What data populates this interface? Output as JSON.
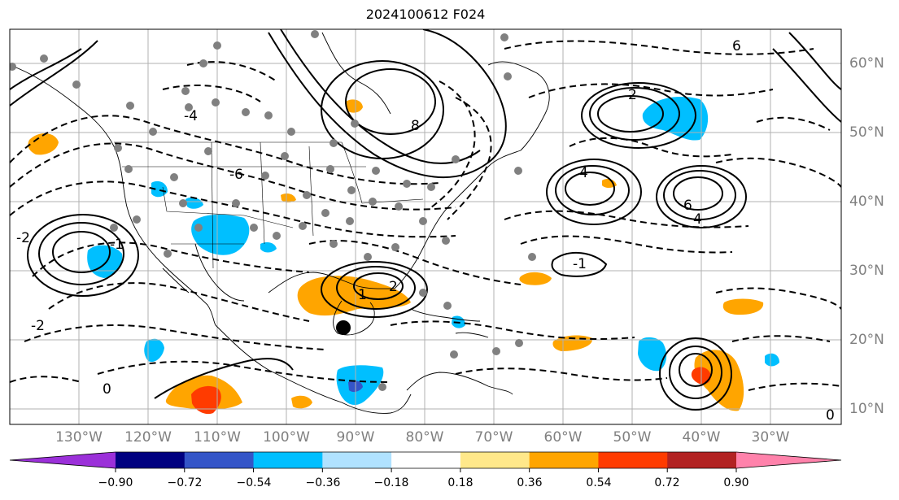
{
  "title": "2024100612 F024",
  "lon_labels": [
    "130°W",
    "120°W",
    "110°W",
    "100°W",
    "90°W",
    "80°W",
    "70°W",
    "60°W",
    "50°W",
    "40°W",
    "30°W"
  ],
  "lat_labels": [
    "60°N",
    "50°N",
    "40°N",
    "30°N",
    "20°N",
    "10°N"
  ],
  "contour_labels": [
    "2",
    "4",
    "6",
    "8",
    "-1",
    "-2",
    "-4",
    "-6",
    "0",
    "1",
    "2",
    "4",
    "6",
    "-1",
    "-2",
    "0"
  ],
  "colorbar": {
    "ticks": [
      "−0.90",
      "−0.72",
      "−0.54",
      "−0.36",
      "−0.18",
      "0.18",
      "0.36",
      "0.54",
      "0.72",
      "0.90"
    ],
    "colors": [
      "#9b30d9",
      "#000080",
      "#3455c8",
      "#00bfff",
      "#b0e2ff",
      "#ffffff",
      "#ffe88a",
      "#ffa500",
      "#ff3b00",
      "#b22222",
      "#ff82ab"
    ]
  }
}
